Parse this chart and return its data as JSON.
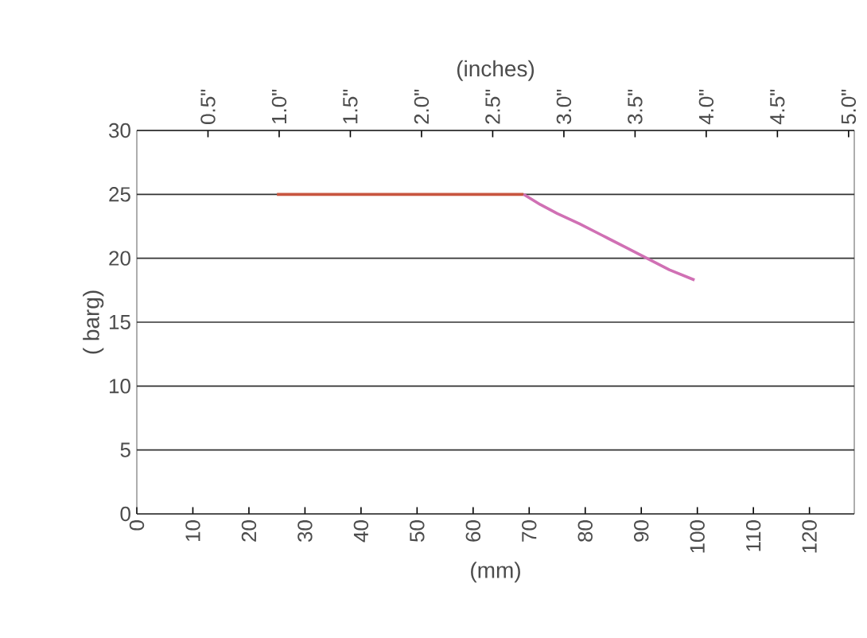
{
  "chart_data": {
    "type": "line",
    "xlabel": "(mm)",
    "ylabel": "( barg)",
    "x2label": "(inches)",
    "xlim": [
      0,
      128
    ],
    "xticks": [
      0,
      10,
      20,
      30,
      40,
      50,
      60,
      70,
      80,
      90,
      100,
      110,
      120
    ],
    "x2lim": [
      0,
      5.04
    ],
    "x2ticks": [
      {
        "value": 0.5,
        "label": "0.5\""
      },
      {
        "value": 1.0,
        "label": "1.0\""
      },
      {
        "value": 1.5,
        "label": "1.5\""
      },
      {
        "value": 2.0,
        "label": "2.0\""
      },
      {
        "value": 2.5,
        "label": "2.5\""
      },
      {
        "value": 3.0,
        "label": "3.0\""
      },
      {
        "value": 3.5,
        "label": "3.5\""
      },
      {
        "value": 4.0,
        "label": "4.0\""
      },
      {
        "value": 4.5,
        "label": "4.5\""
      },
      {
        "value": 5.0,
        "label": "5.0\""
      }
    ],
    "ylim": [
      0,
      30
    ],
    "yticks": [
      0,
      5,
      10,
      15,
      20,
      25,
      30
    ],
    "grid": "y",
    "series": [
      {
        "color": "#c8553f",
        "x": [
          25,
          69
        ],
        "values": [
          25,
          25
        ]
      },
      {
        "color": "#d070b4",
        "x": [
          69,
          72,
          75,
          79,
          83,
          87,
          91,
          95,
          99.5
        ],
        "values": [
          25,
          24.2,
          23.5,
          22.7,
          21.8,
          20.9,
          20.0,
          19.1,
          18.3
        ]
      }
    ]
  }
}
